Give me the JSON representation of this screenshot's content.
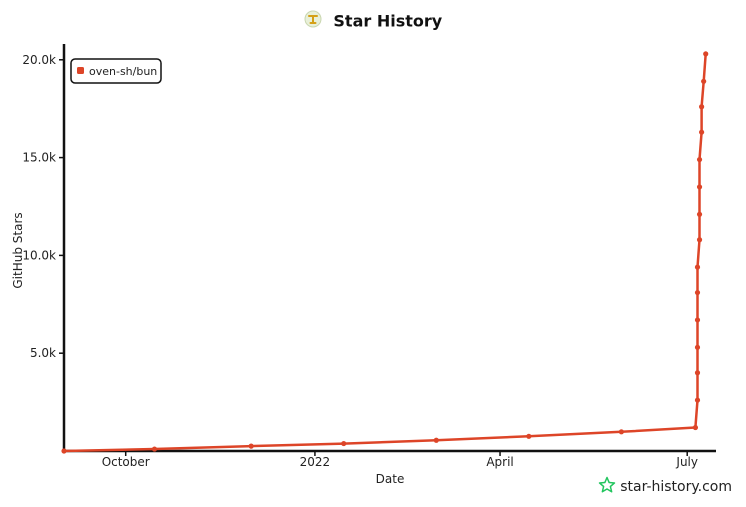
{
  "title": "Star History",
  "brand": "star-history.com",
  "colors": {
    "series": "#dd4528",
    "axis": "#111111",
    "brand_icon": "#22c55e"
  },
  "icons": {
    "title": "star-history-logo-icon",
    "brand": "star-history-brand-icon"
  },
  "chart_data": {
    "type": "line",
    "xlabel": "Date",
    "ylabel": "GitHub Stars",
    "x_ticks": [
      "October",
      "2022",
      "April",
      "July"
    ],
    "x_tick_dates": [
      "2021-10-01",
      "2022-01-01",
      "2022-04-01",
      "2022-07-01"
    ],
    "xlim": [
      "2021-09-01",
      "2022-07-15"
    ],
    "ylim": [
      0,
      20500
    ],
    "y_ticks": [
      5000,
      10000,
      15000,
      20000
    ],
    "y_tick_labels": [
      "5.0k",
      "10.0k",
      "15.0k",
      "20.0k"
    ],
    "legend": {
      "position": "top-left"
    },
    "grid": false,
    "series": [
      {
        "name": "oven-sh/bun",
        "points": [
          [
            "2021-09-01",
            0
          ],
          [
            "2021-10-15",
            100
          ],
          [
            "2021-12-01",
            250
          ],
          [
            "2022-01-15",
            380
          ],
          [
            "2022-03-01",
            550
          ],
          [
            "2022-04-15",
            750
          ],
          [
            "2022-05-30",
            980
          ],
          [
            "2022-07-05",
            1200
          ],
          [
            "2022-07-06",
            2600
          ],
          [
            "2022-07-06",
            4000
          ],
          [
            "2022-07-06",
            5300
          ],
          [
            "2022-07-06",
            6700
          ],
          [
            "2022-07-06",
            8100
          ],
          [
            "2022-07-06",
            9400
          ],
          [
            "2022-07-07",
            10800
          ],
          [
            "2022-07-07",
            12100
          ],
          [
            "2022-07-07",
            13500
          ],
          [
            "2022-07-07",
            14900
          ],
          [
            "2022-07-08",
            16300
          ],
          [
            "2022-07-08",
            17600
          ],
          [
            "2022-07-09",
            18900
          ],
          [
            "2022-07-10",
            20300
          ]
        ]
      }
    ]
  }
}
